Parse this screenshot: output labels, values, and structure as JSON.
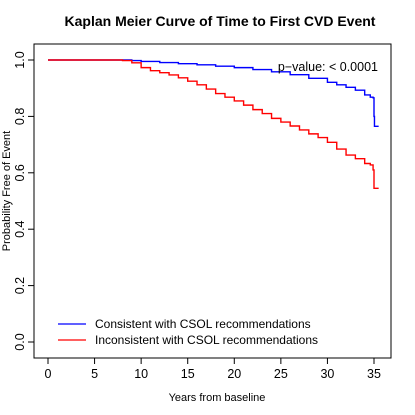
{
  "chart_data": {
    "type": "line",
    "title": "Kaplan Meier Curve of Time to First CVD Event",
    "xlabel": "Years from baseline",
    "ylabel": "Probability Free of Event",
    "xlim": [
      0,
      36
    ],
    "ylim": [
      0,
      1.03
    ],
    "x_ticks": [
      "0",
      "5",
      "10",
      "15",
      "20",
      "25",
      "30",
      "35"
    ],
    "y_ticks": [
      "0.0",
      "0.2",
      "0.4",
      "0.6",
      "0.8",
      "1.0"
    ],
    "annotation": "p−value: < 0.0001",
    "grid": false,
    "legend_position": "bottom-left",
    "series": [
      {
        "name": "Consistent with CSOL recommendations",
        "color": "#0000ff",
        "x": [
          0,
          2,
          4,
          6,
          8,
          9,
          10,
          12,
          14,
          16,
          18,
          20,
          22,
          24,
          26,
          28,
          30,
          31,
          32,
          33,
          34,
          34.6,
          34.9,
          35.0,
          35.05,
          35.2,
          35.5
        ],
        "y": [
          1.0,
          1.0,
          1.0,
          1.0,
          1.0,
          0.998,
          0.995,
          0.991,
          0.987,
          0.983,
          0.978,
          0.973,
          0.966,
          0.958,
          0.948,
          0.935,
          0.921,
          0.912,
          0.903,
          0.893,
          0.876,
          0.868,
          0.866,
          0.8,
          0.765,
          0.765,
          0.765
        ]
      },
      {
        "name": "Inconsistent with CSOL recommendations",
        "color": "#ff0000",
        "x": [
          0,
          2,
          4,
          6,
          7.5,
          8,
          9,
          10,
          11,
          12,
          13,
          14,
          15,
          16,
          17,
          18,
          19,
          20,
          21,
          22,
          23,
          24,
          25,
          26,
          27,
          28,
          29,
          30,
          31,
          32,
          33,
          34,
          34.6,
          34.9,
          35.0,
          35.2,
          35.5
        ],
        "y": [
          1.0,
          1.0,
          1.0,
          1.0,
          1.0,
          0.998,
          0.99,
          0.973,
          0.962,
          0.955,
          0.947,
          0.937,
          0.925,
          0.912,
          0.897,
          0.881,
          0.868,
          0.855,
          0.84,
          0.824,
          0.81,
          0.793,
          0.78,
          0.766,
          0.752,
          0.738,
          0.725,
          0.708,
          0.684,
          0.663,
          0.65,
          0.633,
          0.628,
          0.61,
          0.545,
          0.545,
          0.545
        ]
      }
    ]
  }
}
